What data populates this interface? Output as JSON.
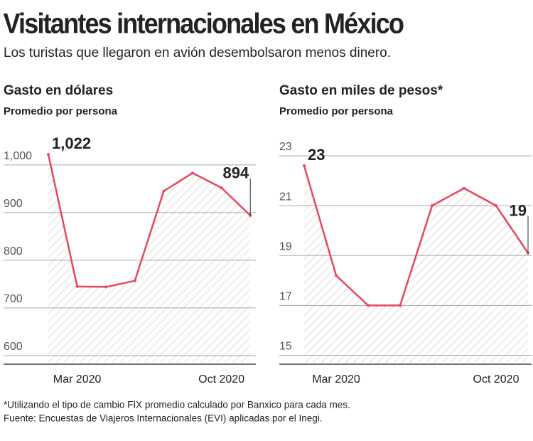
{
  "title": "Visitantes internacionales en México",
  "subtitle": "Los turistas que llegaron en avión desembolsaron menos dinero.",
  "notes": [
    "*Utilizando el tipo de cambio FIX promedio calculado por Banxico para cada mes.",
    "Fuente: Encuestas de Viajeros Internacionales (EVI) aplicadas por el Inegi."
  ],
  "chart_data": [
    {
      "type": "line",
      "title": "Gasto en dólares",
      "subtitle": "Promedio por persona",
      "categories": [
        null,
        "Mar 2020",
        null,
        null,
        null,
        null,
        "Oct 2020",
        null
      ],
      "values": [
        1022,
        745,
        744,
        757,
        945,
        983,
        952,
        894
      ],
      "value_labels": [
        "1,022",
        null,
        null,
        null,
        null,
        null,
        null,
        "894"
      ],
      "color": "#e8475f",
      "ylim": [
        585,
        1040
      ],
      "yticks": [
        600,
        700,
        800,
        900,
        {
          "value": 1000,
          "label": "1,000"
        }
      ],
      "grid": true
    },
    {
      "type": "line",
      "title": "Gasto en miles de pesos*",
      "subtitle": "Promedio por persona",
      "categories": [
        null,
        "Mar 2020",
        null,
        null,
        null,
        null,
        "Oct 2020",
        null
      ],
      "values": [
        22.6,
        18.2,
        17.0,
        17.0,
        21.0,
        21.7,
        21.0,
        19.1
      ],
      "value_labels": [
        "23",
        null,
        null,
        null,
        null,
        null,
        null,
        "19"
      ],
      "color": "#e8475f",
      "ylim": [
        14.7,
        23.4
      ],
      "yticks": [
        15,
        17,
        19,
        21,
        23
      ],
      "grid": true
    }
  ]
}
